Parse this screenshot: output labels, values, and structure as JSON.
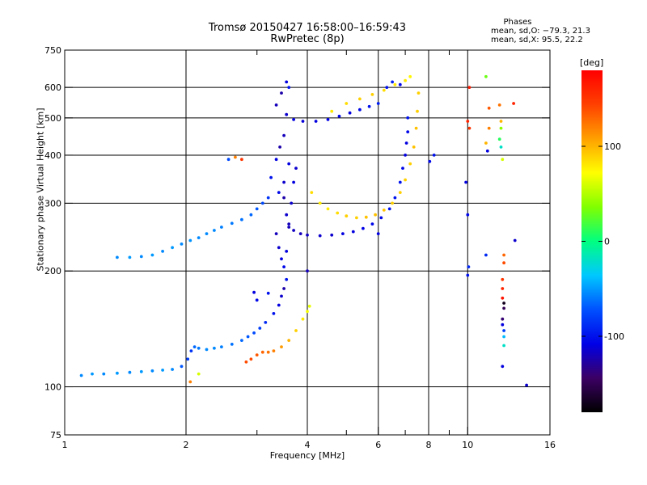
{
  "header": {
    "title": "Tromsø 20150427 16:58:00–16:59:43",
    "subtitle": "RwPretec (8p)"
  },
  "stats": {
    "heading": "Phases",
    "line1": "mean, sd,O: −79.3, 21.3",
    "line2": "mean, sd,X:  95.5, 22.2"
  },
  "colorbar": {
    "unit": "[deg]",
    "range": [
      -180,
      180
    ],
    "ticks": [
      {
        "value": 100,
        "label": "100"
      },
      {
        "value": 0,
        "label": "0"
      },
      {
        "value": -100,
        "label": "-100"
      }
    ],
    "colors": [
      "#000000",
      "#3c0064",
      "#0000e6",
      "#0050ff",
      "#00c8ff",
      "#00ff80",
      "#80ff00",
      "#ffff00",
      "#ffa000",
      "#ff4000",
      "#ff0000"
    ]
  },
  "chart_data": {
    "type": "scatter",
    "title": "Tromsø 20150427 16:58:00–16:59:43",
    "subtitle": "RwPretec (8p)",
    "xlabel": "Frequency [MHz]",
    "ylabel": "Stationary phase Virtual Height [km]",
    "x_scale": "log",
    "y_scale": "log",
    "xlim": [
      1,
      16
    ],
    "ylim": [
      75,
      750
    ],
    "grid": true,
    "x_ticks": [
      {
        "value": 1,
        "label": "1"
      },
      {
        "value": 2,
        "label": "2"
      },
      {
        "value": 4,
        "label": "4"
      },
      {
        "value": 6,
        "label": "6"
      },
      {
        "value": 8,
        "label": "8"
      },
      {
        "value": 10,
        "label": "10"
      },
      {
        "value": 16,
        "label": "16"
      }
    ],
    "x_major_grid": [
      2,
      4,
      6,
      8,
      10
    ],
    "x_minor_ticks": [
      3,
      5,
      7,
      9
    ],
    "y_ticks": [
      {
        "value": 75,
        "label": "75"
      },
      {
        "value": 100,
        "label": "100"
      },
      {
        "value": 200,
        "label": "200"
      },
      {
        "value": 300,
        "label": "300"
      },
      {
        "value": 400,
        "label": "400"
      },
      {
        "value": 500,
        "label": "500"
      },
      {
        "value": 600,
        "label": "600"
      },
      {
        "value": 750,
        "label": "750"
      }
    ],
    "y_major_grid": [
      100,
      200,
      300,
      400,
      500,
      600
    ],
    "series": [
      {
        "mode": "E/F-low trace",
        "points": [
          [
            1.1,
            107,
            -55
          ],
          [
            1.17,
            108,
            -50
          ],
          [
            1.25,
            108,
            -55
          ],
          [
            1.35,
            108.5,
            -50
          ],
          [
            1.45,
            109,
            -55
          ],
          [
            1.55,
            109.5,
            -50
          ],
          [
            1.65,
            110,
            -55
          ],
          [
            1.75,
            110.5,
            -50
          ],
          [
            1.85,
            111,
            -55
          ],
          [
            1.95,
            113,
            -70
          ],
          [
            2.02,
            118,
            -80
          ],
          [
            2.06,
            124,
            -85
          ],
          [
            2.1,
            127,
            -65
          ],
          [
            2.15,
            126,
            -60
          ],
          [
            2.25,
            125,
            -55
          ],
          [
            2.35,
            126,
            -55
          ],
          [
            2.45,
            127,
            -58
          ],
          [
            2.6,
            129,
            -62
          ],
          [
            2.75,
            132,
            -65
          ],
          [
            2.85,
            135,
            -70
          ],
          [
            2.95,
            138,
            -75
          ],
          [
            3.05,
            142,
            -80
          ],
          [
            3.15,
            147,
            -90
          ],
          [
            3.3,
            155,
            -100
          ],
          [
            3.4,
            163,
            -110
          ],
          [
            3.45,
            172,
            -115
          ],
          [
            3.5,
            180,
            -125
          ],
          [
            3.55,
            190,
            -100
          ],
          [
            3.2,
            175,
            -100
          ],
          [
            3.0,
            168,
            -105
          ],
          [
            2.95,
            176,
            -110
          ]
        ]
      },
      {
        "mode": "X low trace",
        "points": [
          [
            2.82,
            116,
            140
          ],
          [
            2.9,
            118,
            140
          ],
          [
            3.0,
            121,
            135
          ],
          [
            3.1,
            123,
            130
          ],
          [
            3.2,
            123,
            125
          ],
          [
            3.3,
            124,
            120
          ],
          [
            3.45,
            127,
            110
          ],
          [
            3.6,
            132,
            100
          ],
          [
            3.75,
            140,
            90
          ],
          [
            3.9,
            150,
            80
          ],
          [
            4.0,
            157,
            70
          ],
          [
            4.05,
            162,
            65
          ]
        ]
      },
      {
        "mode": "F-layer lower trace",
        "points": [
          [
            1.35,
            217,
            -55
          ],
          [
            1.45,
            217,
            -50
          ],
          [
            1.55,
            218,
            -55
          ],
          [
            1.65,
            220,
            -50
          ],
          [
            1.75,
            225,
            -55
          ],
          [
            1.85,
            230,
            -50
          ],
          [
            1.95,
            235,
            -55
          ],
          [
            2.05,
            240,
            -52
          ],
          [
            2.15,
            244,
            -55
          ],
          [
            2.25,
            250,
            -55
          ],
          [
            2.35,
            255,
            -55
          ],
          [
            2.45,
            260,
            -58
          ],
          [
            2.6,
            266,
            -60
          ],
          [
            2.75,
            272,
            -62
          ],
          [
            2.9,
            280,
            -65
          ],
          [
            3.0,
            290,
            -70
          ],
          [
            3.1,
            300,
            -75
          ],
          [
            3.2,
            310,
            -85
          ],
          [
            3.25,
            350,
            -100
          ],
          [
            3.35,
            390,
            -110
          ],
          [
            3.42,
            420,
            -125
          ],
          [
            3.5,
            450,
            -120
          ]
        ]
      },
      {
        "mode": "F O-mode U trace",
        "points": [
          [
            3.5,
            310,
            -125
          ],
          [
            3.55,
            280,
            -115
          ],
          [
            3.6,
            265,
            -120
          ],
          [
            3.7,
            255,
            -118
          ],
          [
            3.85,
            250,
            -120
          ],
          [
            4.0,
            248,
            -118
          ],
          [
            4.3,
            247,
            -115
          ],
          [
            4.6,
            248,
            -115
          ],
          [
            4.9,
            250,
            -110
          ],
          [
            5.2,
            253,
            -110
          ],
          [
            5.5,
            258,
            -108
          ],
          [
            5.8,
            265,
            -105
          ],
          [
            6.1,
            275,
            -105
          ],
          [
            6.4,
            290,
            -100
          ],
          [
            6.6,
            310,
            -100
          ],
          [
            6.8,
            340,
            -100
          ],
          [
            6.9,
            370,
            -105
          ],
          [
            7.0,
            400,
            -110
          ],
          [
            7.05,
            430,
            -110
          ],
          [
            7.1,
            460,
            -105
          ],
          [
            7.1,
            500,
            -100
          ]
        ]
      },
      {
        "mode": "F X-mode U trace",
        "points": [
          [
            4.1,
            320,
            85
          ],
          [
            4.3,
            300,
            80
          ],
          [
            4.5,
            290,
            80
          ],
          [
            4.75,
            283,
            85
          ],
          [
            5.0,
            278,
            90
          ],
          [
            5.3,
            275,
            90
          ],
          [
            5.6,
            276,
            95
          ],
          [
            5.9,
            280,
            95
          ],
          [
            6.2,
            288,
            95
          ],
          [
            6.5,
            300,
            90
          ],
          [
            6.8,
            320,
            90
          ],
          [
            7.0,
            345,
            90
          ],
          [
            7.2,
            380,
            90
          ],
          [
            7.35,
            420,
            95
          ],
          [
            7.45,
            470,
            95
          ],
          [
            7.5,
            520,
            90
          ],
          [
            7.55,
            580,
            90
          ]
        ]
      },
      {
        "mode": "upper O trace",
        "points": [
          [
            3.35,
            540,
            -120
          ],
          [
            3.45,
            580,
            -125
          ],
          [
            3.55,
            620,
            -110
          ],
          [
            3.6,
            600,
            -100
          ],
          [
            3.55,
            510,
            -115
          ],
          [
            3.7,
            495,
            -110
          ],
          [
            3.9,
            490,
            -112
          ],
          [
            4.2,
            490,
            -110
          ],
          [
            4.5,
            495,
            -108
          ],
          [
            4.8,
            505,
            -105
          ],
          [
            5.1,
            515,
            -110
          ],
          [
            5.4,
            525,
            -105
          ],
          [
            5.7,
            535,
            -100
          ],
          [
            6.0,
            545,
            -95
          ],
          [
            6.3,
            600,
            -100
          ],
          [
            6.5,
            620,
            -95
          ],
          [
            6.8,
            610,
            -105
          ]
        ]
      },
      {
        "mode": "upper X trace",
        "points": [
          [
            4.6,
            520,
            80
          ],
          [
            5.0,
            545,
            85
          ],
          [
            5.4,
            560,
            90
          ],
          [
            5.8,
            575,
            90
          ],
          [
            6.2,
            590,
            85
          ],
          [
            6.6,
            610,
            80
          ],
          [
            7.0,
            625,
            80
          ],
          [
            7.2,
            640,
            75
          ]
        ]
      },
      {
        "mode": "spread-F column",
        "points": [
          [
            3.35,
            250,
            -120
          ],
          [
            3.4,
            230,
            -115
          ],
          [
            3.45,
            215,
            -110
          ],
          [
            3.5,
            205,
            -105
          ],
          [
            3.55,
            225,
            -110
          ],
          [
            3.6,
            260,
            -120
          ],
          [
            3.65,
            300,
            -115
          ],
          [
            3.7,
            340,
            -110
          ],
          [
            3.75,
            370,
            -115
          ],
          [
            3.6,
            380,
            -110
          ],
          [
            3.5,
            340,
            -115
          ],
          [
            3.4,
            320,
            -105
          ]
        ]
      },
      {
        "mode": "scattered echoes",
        "points": [
          [
            2.05,
            103,
            120
          ],
          [
            2.15,
            108,
            60
          ],
          [
            2.55,
            390,
            -75
          ],
          [
            2.65,
            395,
            120
          ],
          [
            2.75,
            390,
            150
          ],
          [
            4.0,
            200,
            -120
          ],
          [
            6.0,
            250,
            -110
          ],
          [
            8.05,
            385,
            -105
          ],
          [
            8.25,
            400,
            -100
          ],
          [
            9.9,
            340,
            -110
          ],
          [
            10.0,
            280,
            -105
          ],
          [
            10.05,
            205,
            -90
          ],
          [
            10.0,
            195,
            -100
          ],
          [
            10.0,
            490,
            160
          ],
          [
            10.1,
            600,
            165
          ],
          [
            10.1,
            470,
            150
          ],
          [
            11.1,
            640,
            30
          ],
          [
            11.3,
            530,
            135
          ],
          [
            11.3,
            470,
            120
          ],
          [
            11.1,
            430,
            100
          ],
          [
            11.2,
            410,
            -110
          ],
          [
            11.1,
            220,
            -90
          ],
          [
            12.0,
            540,
            125
          ],
          [
            12.1,
            490,
            100
          ],
          [
            12.1,
            470,
            40
          ],
          [
            12.0,
            440,
            10
          ],
          [
            12.1,
            420,
            -20
          ],
          [
            12.2,
            390,
            60
          ],
          [
            12.3,
            220,
            130
          ],
          [
            12.3,
            210,
            140
          ],
          [
            12.2,
            190,
            150
          ],
          [
            12.2,
            180,
            160
          ],
          [
            12.2,
            170,
            170
          ],
          [
            12.3,
            165,
            -170
          ],
          [
            12.3,
            160,
            -150
          ],
          [
            12.2,
            150,
            -140
          ],
          [
            12.2,
            145,
            -110
          ],
          [
            12.3,
            140,
            -80
          ],
          [
            12.3,
            135,
            -40
          ],
          [
            12.3,
            128,
            -20
          ],
          [
            12.2,
            113,
            -110
          ],
          [
            13.0,
            545,
            160
          ],
          [
            13.1,
            240,
            -115
          ],
          [
            14.0,
            101,
            -115
          ]
        ]
      }
    ]
  }
}
